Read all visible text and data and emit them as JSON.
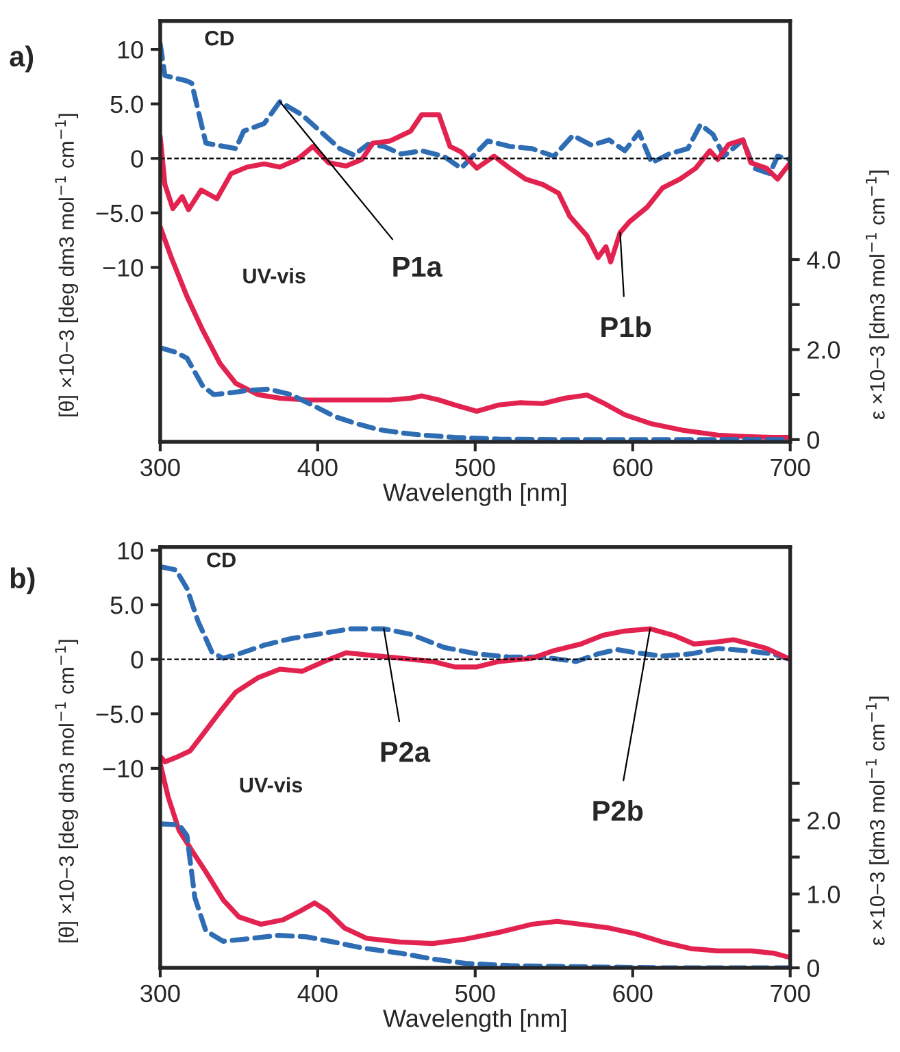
{
  "chart_data": [
    {
      "type": "line",
      "xlabel": "Wavelength [nm]",
      "ylabel": "[θ] ×10−3 [deg dm3 mol$^{−1}$ cm$^{−1}$]",
      "y2label": "ε ×10−3 [dm3 mol$^{−1}$ cm$^{−1}$]",
      "xlim": [
        300,
        700
      ],
      "xticks": [
        300,
        400,
        500,
        600,
        700
      ],
      "ylim": [
        -26.0,
        12.6
      ],
      "yticks": [
        10,
        {
          "value": 5,
          "label": "5.0"
        },
        0,
        {
          "value": -5,
          "label": "−5.0"
        },
        {
          "value": -10,
          "label": "−10"
        }
      ],
      "y2lim": [
        -0.05,
        9.3
      ],
      "y2ticks": [
        0,
        {
          "value": 1,
          "label": null
        },
        {
          "value": 2,
          "label": "2.0"
        },
        {
          "value": 3,
          "label": null
        },
        {
          "value": 4,
          "label": "4.0"
        }
      ],
      "grid": false,
      "legend": false,
      "ref_lines": [
        {
          "axis": "y",
          "value": 0,
          "color": "#000000",
          "line_style": "dashed"
        }
      ],
      "series": [
        {
          "color": "#2e6db4",
          "line_style": "dashed",
          "x": [
            300,
            303,
            317,
            320,
            329,
            348,
            353,
            366,
            376,
            390,
            400,
            414,
            423,
            432,
            442,
            453,
            466,
            480,
            491,
            508,
            522,
            536,
            550,
            562,
            574,
            585,
            595,
            604,
            612,
            623,
            635,
            643,
            651,
            658,
            670,
            677,
            687,
            692,
            700
          ],
          "values": [
            10.5,
            7.6,
            7.1,
            6.9,
            1.4,
            0.9,
            2.5,
            3.2,
            5.2,
            4.0,
            2.7,
            0.9,
            0.3,
            1.3,
            1.1,
            0.4,
            0.7,
            0.2,
            -0.9,
            1.6,
            1.1,
            0.9,
            0.2,
            2.1,
            1.2,
            1.7,
            0.7,
            2.4,
            -0.4,
            0.4,
            0.9,
            3.1,
            2.2,
            0.2,
            1.7,
            -0.9,
            -1.4,
            0.2,
            -0.1
          ]
        },
        {
          "color": "#e3234f",
          "line_style": "solid",
          "x": [
            300,
            303,
            308,
            314,
            318,
            326,
            336,
            345,
            355,
            366,
            376,
            387,
            397,
            407,
            418,
            428,
            435,
            446,
            459,
            466,
            477,
            484,
            491,
            501,
            512,
            522,
            532,
            543,
            553,
            560,
            571,
            578,
            583,
            586,
            592,
            598,
            609,
            619,
            630,
            640,
            649,
            654,
            661,
            670,
            675,
            685,
            692,
            700
          ],
          "values": [
            2.0,
            -2.4,
            -4.6,
            -3.5,
            -4.7,
            -2.9,
            -3.7,
            -1.4,
            -0.8,
            -0.5,
            -0.8,
            -0.1,
            1.1,
            -0.4,
            -0.7,
            -0.1,
            1.4,
            1.6,
            2.5,
            4.0,
            4.0,
            1.1,
            0.6,
            -0.9,
            0.2,
            -0.9,
            -1.9,
            -2.4,
            -3.2,
            -5.3,
            -7.1,
            -9.1,
            -8.1,
            -9.5,
            -6.8,
            -5.8,
            -4.5,
            -2.7,
            -1.9,
            -0.9,
            0.7,
            -0.1,
            1.3,
            1.7,
            -0.4,
            -0.9,
            -1.9,
            -0.4
          ]
        },
        {
          "color": "#e3234f",
          "line_style": "solid",
          "axis": "y2",
          "x": [
            300,
            307,
            317,
            327,
            338,
            348,
            362,
            376,
            393,
            411,
            428,
            446,
            459,
            466,
            477,
            487,
            501,
            515,
            529,
            543,
            557,
            571,
            581,
            595,
            612,
            633,
            654,
            671,
            689,
            700
          ],
          "values": [
            4.73,
            4.05,
            3.18,
            2.43,
            1.69,
            1.25,
            1.0,
            0.92,
            0.88,
            0.88,
            0.88,
            0.88,
            0.92,
            0.97,
            0.88,
            0.77,
            0.63,
            0.77,
            0.82,
            0.8,
            0.92,
            0.99,
            0.82,
            0.55,
            0.35,
            0.2,
            0.1,
            0.07,
            0.05,
            0.05
          ]
        },
        {
          "color": "#2e6db4",
          "line_style": "dashed",
          "axis": "y2",
          "x": [
            300,
            310,
            317,
            327,
            334,
            345,
            355,
            369,
            383,
            397,
            411,
            425,
            439,
            453,
            466,
            487,
            515,
            550,
            619,
            700
          ],
          "values": [
            2.04,
            1.94,
            1.81,
            1.19,
            1.0,
            1.04,
            1.09,
            1.12,
            1.0,
            0.76,
            0.51,
            0.35,
            0.22,
            0.15,
            0.1,
            0.05,
            0.01,
            0,
            0,
            0
          ]
        }
      ],
      "annotations": [
        "a)",
        "CD",
        "UV-vis",
        {
          "text": "P1a",
          "x": 376,
          "y": 5.2
        },
        {
          "text": "P1b",
          "x": 592,
          "y": -6.8
        }
      ]
    },
    {
      "type": "line",
      "xlabel": "Wavelength [nm]",
      "ylabel": "[θ] ×10−3 [deg dm3 mol$^{−1}$ cm$^{−1}$]",
      "y2label": "ε ×10−3 [dm3 mol$^{−1}$ cm$^{−1}$]",
      "xlim": [
        300,
        700
      ],
      "xticks": [
        300,
        400,
        500,
        600,
        700
      ],
      "ylim": [
        -28.3,
        10.3
      ],
      "yticks": [
        10,
        {
          "value": 5,
          "label": "5.0"
        },
        0,
        {
          "value": -5,
          "label": "−5.0"
        },
        {
          "value": -10,
          "label": "−10"
        }
      ],
      "y2lim": [
        0,
        5.7
      ],
      "y2ticks": [
        0,
        {
          "value": 0.5,
          "label": null
        },
        {
          "value": 1,
          "label": "1.0"
        },
        {
          "value": 1.5,
          "label": null
        },
        {
          "value": 2,
          "label": "2.0"
        },
        {
          "value": 2.5,
          "label": null
        }
      ],
      "grid": false,
      "legend": false,
      "ref_lines": [
        {
          "axis": "y",
          "value": 0,
          "color": "#000000",
          "line_style": "dashed"
        }
      ],
      "series": [
        {
          "color": "#2e6db4",
          "line_style": "dashed",
          "x": [
            300,
            310,
            317,
            324,
            333,
            340,
            348,
            366,
            383,
            404,
            421,
            442,
            459,
            480,
            501,
            522,
            543,
            564,
            578,
            590,
            602,
            619,
            637,
            654,
            671,
            689,
            700
          ],
          "values": [
            8.5,
            8.2,
            6.5,
            3.5,
            0.6,
            0.1,
            0.4,
            1.3,
            1.9,
            2.4,
            2.8,
            2.8,
            2.3,
            1.1,
            0.5,
            0.2,
            0.2,
            -0.2,
            0.5,
            0.9,
            0.6,
            0.3,
            0.5,
            1.0,
            0.8,
            0.5,
            0
          ]
        },
        {
          "color": "#e3234f",
          "line_style": "solid",
          "x": [
            300,
            303,
            310,
            319,
            327,
            338,
            348,
            362,
            376,
            390,
            404,
            418,
            432,
            453,
            473,
            487,
            501,
            515,
            536,
            550,
            567,
            581,
            595,
            611,
            626,
            639,
            654,
            664,
            675,
            685,
            700
          ],
          "values": [
            -8.9,
            -9.4,
            -9.0,
            -8.4,
            -6.9,
            -4.8,
            -3.0,
            -1.7,
            -0.9,
            -1.1,
            -0.2,
            0.6,
            0.4,
            0.1,
            -0.2,
            -0.7,
            -0.7,
            -0.2,
            0.1,
            0.8,
            1.4,
            2.2,
            2.6,
            2.8,
            2.2,
            1.4,
            1.6,
            1.8,
            1.4,
            1.0,
            0
          ]
        },
        {
          "color": "#e3234f",
          "line_style": "solid",
          "axis": "y2",
          "x": [
            300,
            305,
            312,
            321,
            329,
            340,
            350,
            364,
            378,
            389,
            398,
            406,
            417,
            431,
            452,
            473,
            494,
            515,
            536,
            552,
            567,
            585,
            602,
            619,
            637,
            654,
            675,
            689,
            700
          ],
          "values": [
            2.77,
            2.32,
            1.86,
            1.56,
            1.3,
            0.92,
            0.69,
            0.59,
            0.65,
            0.77,
            0.88,
            0.77,
            0.54,
            0.4,
            0.35,
            0.33,
            0.39,
            0.48,
            0.59,
            0.63,
            0.59,
            0.54,
            0.46,
            0.35,
            0.26,
            0.23,
            0.23,
            0.2,
            0.14
          ]
        },
        {
          "color": "#2e6db4",
          "line_style": "dashed",
          "axis": "y2",
          "x": [
            300,
            312,
            317,
            322,
            329,
            340,
            354,
            375,
            393,
            410,
            428,
            452,
            473,
            494,
            522,
            550,
            619,
            700
          ],
          "values": [
            1.95,
            1.94,
            1.79,
            0.95,
            0.5,
            0.36,
            0.39,
            0.44,
            0.42,
            0.35,
            0.27,
            0.2,
            0.12,
            0.06,
            0.03,
            0.02,
            0,
            0
          ]
        }
      ],
      "annotations": [
        "b)",
        "CD",
        "UV-vis",
        {
          "text": "P2a",
          "x": 442,
          "y": 2.8
        },
        {
          "text": "P2b",
          "x": 611,
          "y": 2.8
        }
      ]
    }
  ]
}
